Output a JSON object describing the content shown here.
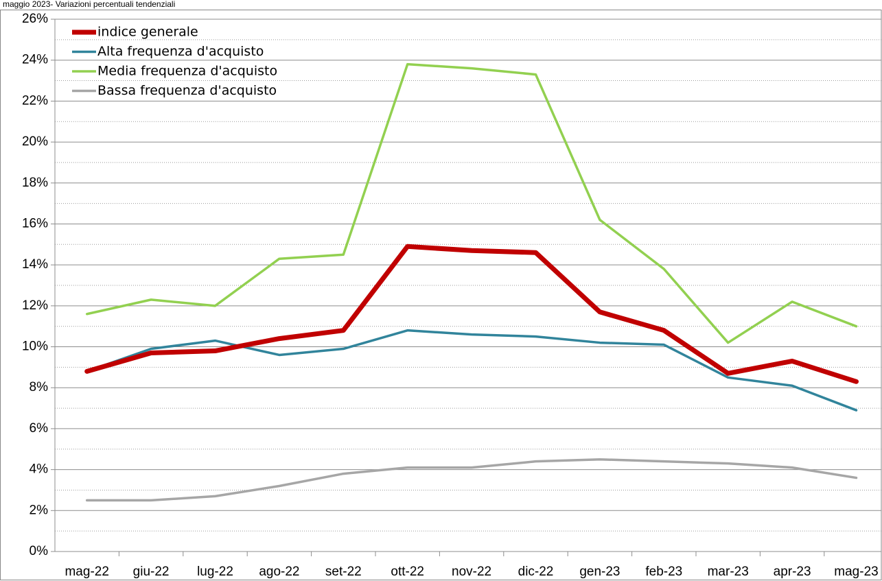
{
  "chart_data": {
    "type": "line",
    "title": "maggio 2023- Variazioni percentuali tendenziali",
    "categories": [
      "mag-22",
      "giu-22",
      "lug-22",
      "ago-22",
      "set-22",
      "ott-22",
      "nov-22",
      "dic-22",
      "gen-23",
      "feb-23",
      "mar-23",
      "apr-23",
      "mag-23"
    ],
    "series": [
      {
        "name": "indice generale",
        "color": "#c00000",
        "width": 7,
        "values": [
          8.8,
          9.7,
          9.8,
          10.4,
          10.8,
          14.9,
          14.7,
          14.6,
          11.7,
          10.8,
          8.7,
          9.3,
          8.3
        ]
      },
      {
        "name": "Alta frequenza d'acquisto",
        "color": "#31849b",
        "width": 3.5,
        "values": [
          8.8,
          9.9,
          10.3,
          9.6,
          9.9,
          10.8,
          10.6,
          10.5,
          10.2,
          10.1,
          8.5,
          8.1,
          6.9
        ]
      },
      {
        "name": "Media frequenza d'acquisto",
        "color": "#92d050",
        "width": 3.5,
        "values": [
          11.6,
          12.3,
          12.0,
          14.3,
          14.5,
          23.8,
          23.6,
          23.3,
          16.2,
          13.8,
          10.2,
          12.2,
          11.0
        ]
      },
      {
        "name": "Bassa frequenza d'acquisto",
        "color": "#a6a6a6",
        "width": 3.5,
        "values": [
          2.5,
          2.5,
          2.7,
          3.2,
          3.8,
          4.1,
          4.1,
          4.4,
          4.5,
          4.4,
          4.3,
          4.1,
          3.6
        ]
      }
    ],
    "ylim": [
      0,
      26
    ],
    "yticks": [
      {
        "value": 0,
        "label": "0%"
      },
      {
        "value": 2,
        "label": "2%"
      },
      {
        "value": 4,
        "label": "4%"
      },
      {
        "value": 6,
        "label": "6%"
      },
      {
        "value": 8,
        "label": "8%"
      },
      {
        "value": 10,
        "label": "10%"
      },
      {
        "value": 12,
        "label": "12%"
      },
      {
        "value": 14,
        "label": "14%"
      },
      {
        "value": 16,
        "label": "16%"
      },
      {
        "value": 18,
        "label": "18%"
      },
      {
        "value": 20,
        "label": "20%"
      },
      {
        "value": 22,
        "label": "22%"
      },
      {
        "value": 24,
        "label": "24%"
      },
      {
        "value": 26,
        "label": "26%"
      }
    ],
    "minor_yticks": [
      1,
      3,
      5,
      7,
      9,
      11,
      13,
      15,
      17,
      19,
      21,
      23,
      25
    ],
    "grid": true,
    "legend": "top-left"
  }
}
